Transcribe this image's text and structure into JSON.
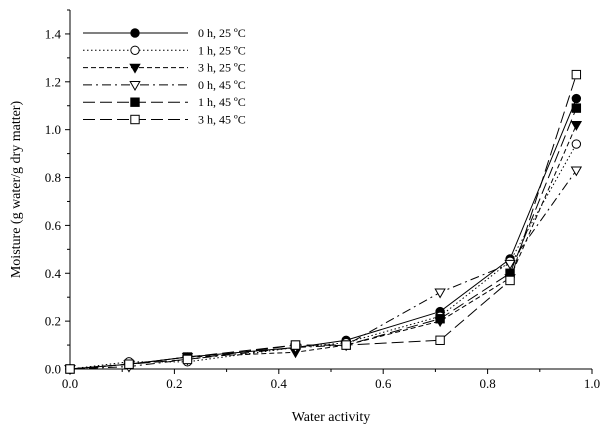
{
  "chart_data": {
    "type": "line",
    "title": "",
    "xlabel": "Water activity",
    "ylabel": "Moisture (g water/g dry matter)",
    "xlim": [
      0.0,
      1.0
    ],
    "ylim": [
      0.0,
      1.5
    ],
    "xticks": [
      "0.0",
      "0.2",
      "0.4",
      "0.6",
      "0.8",
      "1.0"
    ],
    "yticks": [
      "0.0",
      "0.2",
      "0.4",
      "0.6",
      "0.8",
      "1.0",
      "1.2",
      "1.4"
    ],
    "grid": false,
    "legend_position": "top-left",
    "series": [
      {
        "name": "0 h, 25 ºC",
        "marker": "filled-circle",
        "line": "solid",
        "x": [
          0.0,
          0.113,
          0.225,
          0.432,
          0.529,
          0.709,
          0.843,
          0.97
        ],
        "y": [
          0.0,
          0.02,
          0.05,
          0.09,
          0.12,
          0.24,
          0.46,
          1.13
        ]
      },
      {
        "name": "1 h, 25 ºC",
        "marker": "open-circle",
        "line": "dotted",
        "x": [
          0.0,
          0.113,
          0.225,
          0.432,
          0.529,
          0.709,
          0.843,
          0.97
        ],
        "y": [
          0.0,
          0.03,
          0.03,
          0.09,
          0.11,
          0.22,
          0.45,
          0.94
        ]
      },
      {
        "name": "3 h, 25 ºC",
        "marker": "filled-triangle-down",
        "line": "short-dash",
        "x": [
          0.0,
          0.113,
          0.225,
          0.432,
          0.529,
          0.709,
          0.843,
          0.97
        ],
        "y": [
          0.0,
          0.02,
          0.05,
          0.07,
          0.1,
          0.2,
          0.38,
          1.02
        ]
      },
      {
        "name": "0 h, 45 ºC",
        "marker": "open-triangle-down",
        "line": "dash-dot",
        "x": [
          0.0,
          0.113,
          0.225,
          0.432,
          0.529,
          0.709,
          0.843,
          0.97
        ],
        "y": [
          0.0,
          0.01,
          0.04,
          0.09,
          0.1,
          0.32,
          0.44,
          0.83
        ]
      },
      {
        "name": "1 h, 45 ºC",
        "marker": "filled-square",
        "line": "long-dash",
        "x": [
          0.0,
          0.113,
          0.225,
          0.432,
          0.529,
          0.709,
          0.843,
          0.97
        ],
        "y": [
          0.0,
          0.02,
          0.05,
          0.1,
          0.1,
          0.21,
          0.4,
          1.09
        ]
      },
      {
        "name": "3 h, 45 ºC",
        "marker": "open-square",
        "line": "long-dash",
        "x": [
          0.0,
          0.113,
          0.225,
          0.432,
          0.529,
          0.709,
          0.843,
          0.97
        ],
        "y": [
          0.0,
          0.02,
          0.04,
          0.1,
          0.1,
          0.12,
          0.37,
          1.23
        ]
      }
    ]
  }
}
